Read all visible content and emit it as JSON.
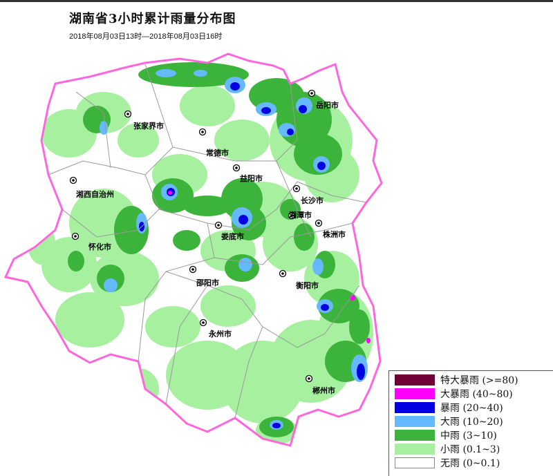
{
  "title": "湖南省3小时累计雨量分布图",
  "subtitle": "2018年08月03日13时—2018年08月03日16时",
  "cities": [
    {
      "name": "岳阳市"
    },
    {
      "name": "张家界市"
    },
    {
      "name": "常德市"
    },
    {
      "name": "益阳市"
    },
    {
      "name": "长沙市"
    },
    {
      "name": "湘西自治州"
    },
    {
      "name": "湘潭市"
    },
    {
      "name": "株洲市"
    },
    {
      "name": "怀化市"
    },
    {
      "name": "娄底市"
    },
    {
      "name": "邵阳市"
    },
    {
      "name": "衡阳市"
    },
    {
      "name": "永州市"
    },
    {
      "name": "郴州市"
    }
  ],
  "legend": [
    {
      "label": "特大暴雨 (>=80)",
      "color": "#6e0036"
    },
    {
      "label": "大暴雨 (40~80)",
      "color": "#ff00ff"
    },
    {
      "label": "暴雨 (20~40)",
      "color": "#0000e0"
    },
    {
      "label": "大雨 (10~20)",
      "color": "#66b8ff"
    },
    {
      "label": "中雨 (3~10)",
      "color": "#3cb43c"
    },
    {
      "label": "小雨 (0.1~3)",
      "color": "#a6f0a0"
    },
    {
      "label": "无雨 (0~0.1)",
      "color": "#ffffff"
    }
  ],
  "border_color": "#ff66dd"
}
